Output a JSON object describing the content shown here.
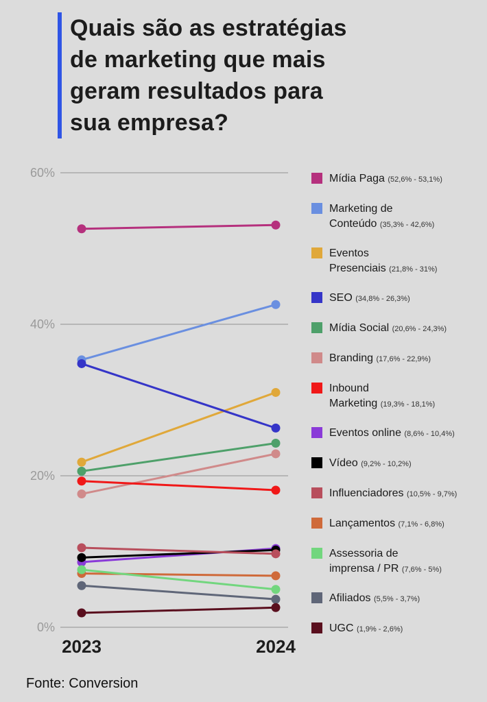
{
  "title_lines": [
    "Quais são as estratégias",
    "de marketing que mais",
    "geram resultados para",
    "sua empresa?"
  ],
  "source": "Fonte: Conversion",
  "accent_color": "#2f55e6",
  "chart_data": {
    "type": "line",
    "title": "Quais são as estratégias de marketing que mais geram resultados para sua empresa?",
    "categories": [
      "2023",
      "2024"
    ],
    "ylim": [
      0,
      60
    ],
    "y_ticks": [
      "0%",
      "20%",
      "40%",
      "60%"
    ],
    "grid": true,
    "legend_placement": "right",
    "series": [
      {
        "name": "Mídia Paga",
        "range": "(52,6% - 53,1%)",
        "color": "#b5307d",
        "values": [
          52.6,
          53.1
        ],
        "legend": [
          "Mídia Paga"
        ]
      },
      {
        "name": "Marketing de Conteúdo",
        "range": "(35,3% - 42,6%)",
        "color": "#6a8fe0",
        "values": [
          35.3,
          42.6
        ],
        "legend": [
          "Marketing de",
          "Conteúdo"
        ]
      },
      {
        "name": "Eventos Presenciais",
        "range": "(21,8% - 31%)",
        "color": "#e0a83a",
        "values": [
          21.8,
          31.0
        ],
        "legend": [
          "Eventos",
          "Presenciais"
        ]
      },
      {
        "name": "SEO",
        "range": "(34,8% - 26,3%)",
        "color": "#3535c8",
        "values": [
          34.8,
          26.3
        ],
        "legend": [
          "SEO"
        ]
      },
      {
        "name": "Mídia Social",
        "range": "(20,6% - 24,3%)",
        "color": "#4ea06a",
        "values": [
          20.6,
          24.3
        ],
        "legend": [
          "Mídia Social"
        ]
      },
      {
        "name": "Branding",
        "range": "(17,6% - 22,9%)",
        "color": "#d08a8a",
        "values": [
          17.6,
          22.9
        ],
        "legend": [
          "Branding"
        ]
      },
      {
        "name": "Inbound Marketing",
        "range": "(19,3% - 18,1%)",
        "color": "#f01818",
        "values": [
          19.3,
          18.1
        ],
        "legend": [
          "Inbound",
          "Marketing"
        ]
      },
      {
        "name": "Eventos online",
        "range": "(8,6% - 10,4%)",
        "color": "#8a3ad8",
        "values": [
          8.6,
          10.4
        ],
        "legend": [
          "Eventos online"
        ]
      },
      {
        "name": "Vídeo",
        "range": "(9,2% - 10,2%)",
        "color": "#000000",
        "values": [
          9.2,
          10.2
        ],
        "legend": [
          "Vídeo"
        ]
      },
      {
        "name": "Influenciadores",
        "range": "(10,5% - 9,7%)",
        "color": "#b84e5c",
        "values": [
          10.5,
          9.7
        ],
        "legend": [
          "Influenciadores"
        ]
      },
      {
        "name": "Lançamentos",
        "range": "(7,1% - 6,8%)",
        "color": "#cf6a3a",
        "values": [
          7.1,
          6.8
        ],
        "legend": [
          "Lançamentos"
        ]
      },
      {
        "name": "Assessoria de imprensa / PR",
        "range": "(7,6% - 5%)",
        "color": "#72d67e",
        "values": [
          7.6,
          5.0
        ],
        "legend": [
          "Assessoria de",
          "imprensa / PR"
        ]
      },
      {
        "name": "Afiliados",
        "range": "(5,5% - 3,7%)",
        "color": "#5f6678",
        "values": [
          5.5,
          3.7
        ],
        "legend": [
          "Afiliados"
        ]
      },
      {
        "name": "UGC",
        "range": "(1,9% - 2,6%)",
        "color": "#5a0f1e",
        "values": [
          1.9,
          2.6
        ],
        "legend": [
          "UGC"
        ]
      }
    ]
  }
}
